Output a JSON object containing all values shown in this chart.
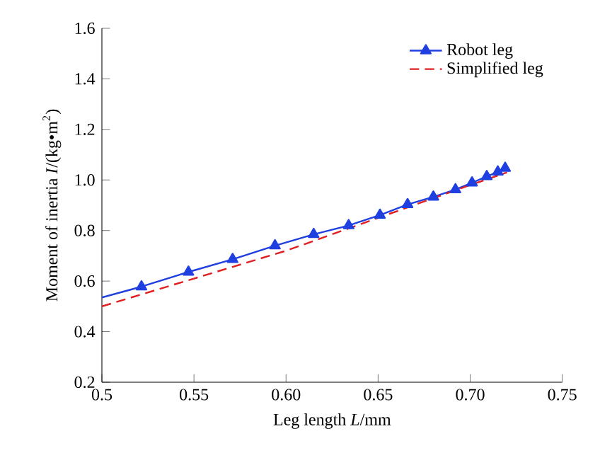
{
  "chart_data": {
    "type": "line",
    "xlabel": "Leg length *L*/mm",
    "ylabel": "Moment of inertia *I*/(kg•m$^{2}$)",
    "xlim": [
      0.5,
      0.75
    ],
    "ylim": [
      0.2,
      1.6
    ],
    "xticks": [
      0.5,
      0.55,
      {
        "value": 0.6,
        "label": "0.60"
      },
      0.65,
      {
        "value": 0.7,
        "label": "0.70"
      },
      0.75
    ],
    "yticks": [
      0.2,
      0.4,
      0.6,
      0.8,
      {
        "value": 1.0,
        "label": "1.0"
      },
      1.2,
      1.4,
      1.6
    ],
    "legend": "top right",
    "grid": false,
    "series": [
      {
        "name": "Robot leg",
        "color": "#1f3fe0",
        "marker": "triangle",
        "line_style": "solid",
        "x": [
          0.5,
          0.5215,
          0.547,
          0.571,
          0.594,
          0.615,
          0.634,
          0.651,
          0.666,
          0.68,
          0.692,
          0.701,
          0.709,
          0.715,
          0.719
        ],
        "values": [
          0.535,
          0.578,
          0.636,
          0.686,
          0.74,
          0.785,
          0.82,
          0.861,
          0.903,
          0.933,
          0.962,
          0.989,
          1.014,
          1.032,
          1.047
        ]
      },
      {
        "name": "Simplified leg",
        "color": "#e02020",
        "marker": "none",
        "line_style": "dashed",
        "x": [
          0.5,
          0.55,
          0.6,
          0.65,
          0.7,
          0.72
        ],
        "values": [
          0.5,
          0.61,
          0.72,
          0.85,
          0.98,
          1.03
        ]
      }
    ]
  }
}
